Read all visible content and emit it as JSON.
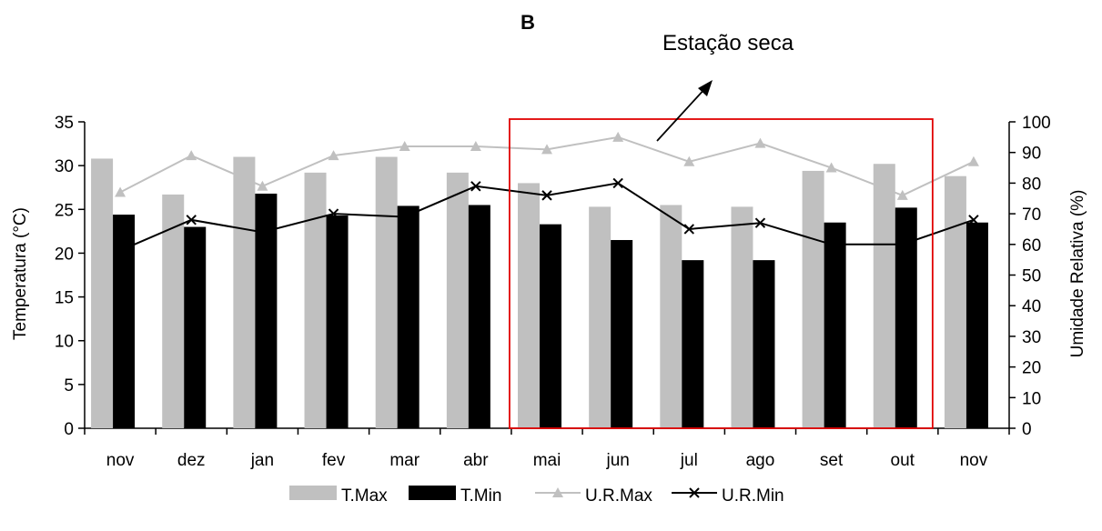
{
  "chart_data": {
    "type": "bar",
    "title": "B",
    "annotation": "Estação seca",
    "ylabel": "Temperatura (°C)",
    "y2label": "Umidade Relativa (%)",
    "ylim": [
      0,
      35
    ],
    "y2lim": [
      0,
      100
    ],
    "yticks": [
      0,
      5,
      10,
      15,
      20,
      25,
      30,
      35
    ],
    "y2ticks": [
      0,
      10,
      20,
      30,
      40,
      50,
      60,
      70,
      80,
      90,
      100
    ],
    "categories": [
      "nov",
      "dez",
      "jan",
      "fev",
      "mar",
      "abr",
      "mai",
      "jun",
      "jul",
      "ago",
      "set",
      "out",
      "nov"
    ],
    "highlight_range": [
      "mai",
      "out"
    ],
    "bar_series": [
      {
        "name": "T.Max",
        "color": "#c0c0c0",
        "values": [
          30.8,
          26.7,
          31.0,
          29.2,
          31.0,
          29.2,
          28.0,
          25.3,
          25.5,
          25.3,
          29.4,
          30.2,
          28.8
        ]
      },
      {
        "name": "T.Min",
        "color": "#000000",
        "values": [
          24.4,
          23.0,
          26.8,
          24.3,
          25.4,
          25.5,
          23.3,
          21.5,
          19.2,
          19.2,
          23.5,
          25.2,
          23.5
        ]
      }
    ],
    "line_series": [
      {
        "name": "U.R.Max",
        "color": "#c0c0c0",
        "marker": "triangle",
        "values": [
          77,
          89,
          79,
          89,
          92,
          92,
          91,
          95,
          87,
          93,
          85,
          76,
          87
        ]
      },
      {
        "name": "U.R.Min",
        "color": "#000000",
        "marker": "x",
        "values": [
          58,
          68,
          64,
          70,
          69,
          79,
          76,
          80,
          65,
          67,
          60,
          60,
          68
        ]
      }
    ],
    "highlight_color": "#e00000",
    "legend_position": "bottom"
  }
}
